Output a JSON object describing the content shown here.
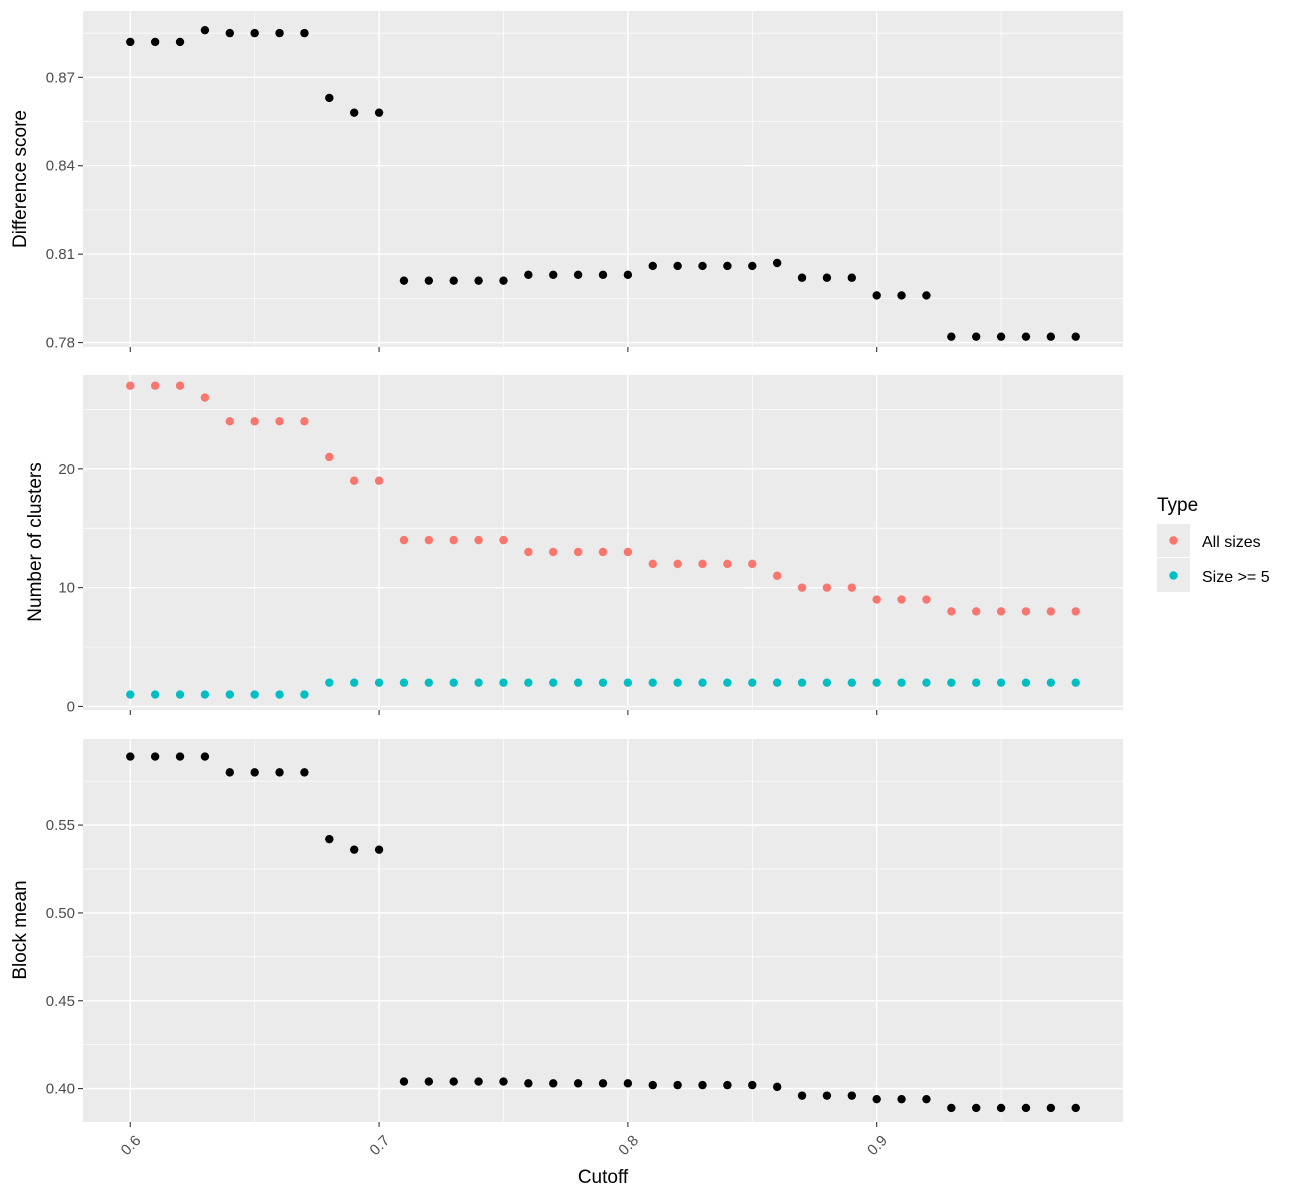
{
  "chart_data": [
    {
      "type": "scatter",
      "ylabel": "Difference score",
      "xlabel": "",
      "xlim": [
        0.581,
        0.999
      ],
      "ylim": [
        0.7785,
        0.8925
      ],
      "x_ticks": [
        0.6,
        0.7,
        0.8,
        0.9
      ],
      "y_ticks": [
        0.78,
        0.81,
        0.84,
        0.87
      ],
      "y_tick_labels": [
        "0.78",
        "0.81",
        "0.84",
        "0.87"
      ],
      "grid": true,
      "x": [
        0.6,
        0.61,
        0.62,
        0.63,
        0.64,
        0.65,
        0.66,
        0.67,
        0.68,
        0.69,
        0.7,
        0.71,
        0.72,
        0.73,
        0.74,
        0.75,
        0.76,
        0.77,
        0.78,
        0.79,
        0.8,
        0.81,
        0.82,
        0.83,
        0.84,
        0.85,
        0.86,
        0.87,
        0.88,
        0.89,
        0.9,
        0.91,
        0.92,
        0.93,
        0.94,
        0.95,
        0.96,
        0.97,
        0.98
      ],
      "series": [
        {
          "color": "#000000",
          "values": [
            0.882,
            0.882,
            0.882,
            0.886,
            0.885,
            0.885,
            0.885,
            0.885,
            0.863,
            0.858,
            0.858,
            0.801,
            0.801,
            0.801,
            0.801,
            0.801,
            0.803,
            0.803,
            0.803,
            0.803,
            0.803,
            0.806,
            0.806,
            0.806,
            0.806,
            0.806,
            0.807,
            0.802,
            0.802,
            0.802,
            0.796,
            0.796,
            0.796,
            0.782,
            0.782,
            0.782,
            0.782,
            0.782,
            0.782
          ]
        }
      ]
    },
    {
      "type": "scatter",
      "ylabel": "Number of clusters",
      "xlabel": "",
      "xlim": [
        0.581,
        0.999
      ],
      "ylim": [
        -0.3,
        27.9
      ],
      "x_ticks": [
        0.6,
        0.7,
        0.8,
        0.9
      ],
      "y_ticks": [
        0,
        10,
        20
      ],
      "y_tick_labels": [
        "0",
        "10",
        "20"
      ],
      "grid": true,
      "legend_position": "right",
      "x": [
        0.6,
        0.61,
        0.62,
        0.63,
        0.64,
        0.65,
        0.66,
        0.67,
        0.68,
        0.69,
        0.7,
        0.71,
        0.72,
        0.73,
        0.74,
        0.75,
        0.76,
        0.77,
        0.78,
        0.79,
        0.8,
        0.81,
        0.82,
        0.83,
        0.84,
        0.85,
        0.86,
        0.87,
        0.88,
        0.89,
        0.9,
        0.91,
        0.92,
        0.93,
        0.94,
        0.95,
        0.96,
        0.97,
        0.98
      ],
      "series": [
        {
          "name": "All sizes",
          "color": "#F8766D",
          "values": [
            27,
            27,
            27,
            26,
            24,
            24,
            24,
            24,
            21,
            19,
            19,
            14,
            14,
            14,
            14,
            14,
            13,
            13,
            13,
            13,
            13,
            12,
            12,
            12,
            12,
            12,
            11,
            10,
            10,
            10,
            9,
            9,
            9,
            8,
            8,
            8,
            8,
            8,
            8
          ]
        },
        {
          "name": "Size >= 5",
          "color": "#00BFC4",
          "values": [
            1,
            1,
            1,
            1,
            1,
            1,
            1,
            1,
            2,
            2,
            2,
            2,
            2,
            2,
            2,
            2,
            2,
            2,
            2,
            2,
            2,
            2,
            2,
            2,
            2,
            2,
            2,
            2,
            2,
            2,
            2,
            2,
            2,
            2,
            2,
            2,
            2,
            2,
            2
          ]
        }
      ]
    },
    {
      "type": "scatter",
      "ylabel": "Block mean",
      "xlabel": "Cutoff",
      "xlim": [
        0.581,
        0.999
      ],
      "ylim": [
        0.381,
        0.599
      ],
      "x_ticks": [
        0.6,
        0.7,
        0.8,
        0.9
      ],
      "x_tick_labels": [
        "0.6",
        "0.7",
        "0.8",
        "0.9"
      ],
      "y_ticks": [
        0.4,
        0.45,
        0.5,
        0.55
      ],
      "y_tick_labels": [
        "0.40",
        "0.45",
        "0.50",
        "0.55"
      ],
      "grid": true,
      "x": [
        0.6,
        0.61,
        0.62,
        0.63,
        0.64,
        0.65,
        0.66,
        0.67,
        0.68,
        0.69,
        0.7,
        0.71,
        0.72,
        0.73,
        0.74,
        0.75,
        0.76,
        0.77,
        0.78,
        0.79,
        0.8,
        0.81,
        0.82,
        0.83,
        0.84,
        0.85,
        0.86,
        0.87,
        0.88,
        0.89,
        0.9,
        0.91,
        0.92,
        0.93,
        0.94,
        0.95,
        0.96,
        0.97,
        0.98
      ],
      "series": [
        {
          "color": "#000000",
          "values": [
            0.589,
            0.589,
            0.589,
            0.589,
            0.58,
            0.58,
            0.58,
            0.58,
            0.542,
            0.536,
            0.536,
            0.404,
            0.404,
            0.404,
            0.404,
            0.404,
            0.403,
            0.403,
            0.403,
            0.403,
            0.403,
            0.402,
            0.402,
            0.402,
            0.402,
            0.402,
            0.401,
            0.396,
            0.396,
            0.396,
            0.394,
            0.394,
            0.394,
            0.389,
            0.389,
            0.389,
            0.389,
            0.389,
            0.389
          ]
        }
      ]
    }
  ],
  "legend": {
    "title": "Type",
    "items": [
      {
        "label": "All sizes",
        "color": "#F8766D"
      },
      {
        "label": "Size >= 5",
        "color": "#00BFC4"
      }
    ]
  },
  "colors": {
    "panel_background": "#EBEBEB",
    "grid": "#FFFFFF",
    "tick": "#333333"
  }
}
